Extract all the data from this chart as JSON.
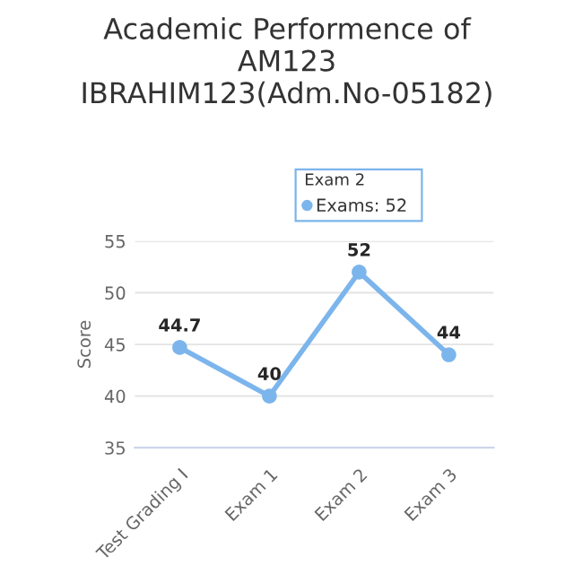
{
  "chart_data": {
    "type": "line",
    "title": "Academic Performence of AM123 IBRAHIM123(Adm.No-05182)",
    "ylabel": "Score",
    "categories": [
      "Test Grading I",
      "Exam 1",
      "Exam 2",
      "Exam 3"
    ],
    "series": [
      {
        "color": "#7cb5ec",
        "values": [
          44.7,
          40,
          52,
          44
        ]
      }
    ],
    "annotations": [
      "Exam 2",
      "Exams: 52"
    ],
    "ylim": [
      35,
      55
    ],
    "yticks": [
      35,
      40,
      45,
      50,
      55
    ],
    "grid": "y",
    "marker": "circle",
    "line_style": "solid",
    "data_labels": true,
    "legend": false
  }
}
